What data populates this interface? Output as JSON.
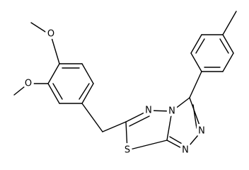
{
  "atoms": [
    "O",
    "O",
    "N",
    "N",
    "N",
    "N",
    "S"
  ]
}
